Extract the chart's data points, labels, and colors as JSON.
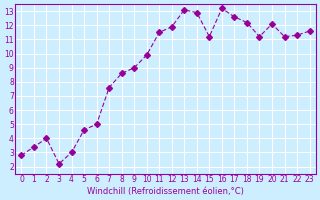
{
  "x": [
    0,
    1,
    2,
    3,
    4,
    5,
    6,
    7,
    8,
    9,
    10,
    11,
    12,
    13,
    14,
    15,
    16,
    17,
    18,
    19,
    20,
    21,
    22,
    23
  ],
  "y": [
    2.8,
    3.4,
    4.0,
    2.2,
    3.0,
    4.6,
    5.0,
    7.6,
    8.6,
    9.0,
    9.9,
    11.5,
    11.9,
    13.1,
    12.9,
    11.2,
    13.2,
    12.6,
    12.2,
    11.2,
    12.1,
    11.2,
    11.3,
    11.6
  ],
  "line_color": "#990099",
  "marker": "D",
  "marker_size": 3,
  "bg_color": "#cceeff",
  "grid_color": "#ffffff",
  "xlabel": "Windchill (Refroidissement éolien,°C)",
  "ylabel": "",
  "title": "",
  "xlim": [
    -0.5,
    23.5
  ],
  "ylim": [
    1.5,
    13.5
  ],
  "xticks": [
    0,
    1,
    2,
    3,
    4,
    5,
    6,
    7,
    8,
    9,
    10,
    11,
    12,
    13,
    14,
    15,
    16,
    17,
    18,
    19,
    20,
    21,
    22,
    23
  ],
  "yticks": [
    2,
    3,
    4,
    5,
    6,
    7,
    8,
    9,
    10,
    11,
    12,
    13
  ]
}
